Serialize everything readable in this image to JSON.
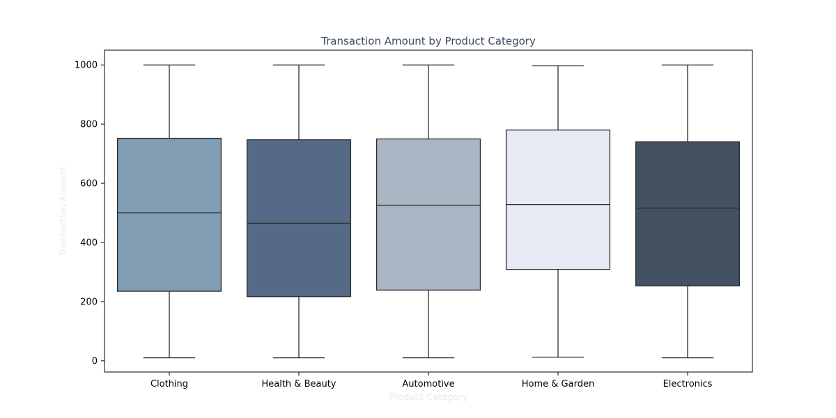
{
  "chart_data": {
    "type": "box",
    "title": "Transaction Amount by Product Category",
    "xlabel": "Product Category",
    "ylabel": "Transaction Amount",
    "categories": [
      "Clothing",
      "Health & Beauty",
      "Automotive",
      "Home & Garden",
      "Electronics"
    ],
    "boxes": [
      {
        "category": "Clothing",
        "min": 10,
        "q1": 235,
        "median": 500,
        "q3": 752,
        "max": 1000,
        "color": "#809DB3"
      },
      {
        "category": "Health & Beauty",
        "min": 10,
        "q1": 217,
        "median": 465,
        "q3": 747,
        "max": 1000,
        "color": "#546A86"
      },
      {
        "category": "Automotive",
        "min": 10,
        "q1": 239,
        "median": 526,
        "q3": 750,
        "max": 1000,
        "color": "#A9B6C4"
      },
      {
        "category": "Home & Garden",
        "min": 12,
        "q1": 309,
        "median": 528,
        "q3": 780,
        "max": 997,
        "color": "#E6EAF2"
      },
      {
        "category": "Electronics",
        "min": 10,
        "q1": 253,
        "median": 516,
        "q3": 740,
        "max": 1000,
        "color": "#435163"
      }
    ],
    "yticks": [
      0,
      200,
      400,
      600,
      800,
      1000
    ],
    "ylim": [
      -38,
      1050
    ],
    "grid": false,
    "title_color": "#3B4B60",
    "axis_label_color": "#E6EAF2",
    "line_color": "#2B2B2B"
  }
}
